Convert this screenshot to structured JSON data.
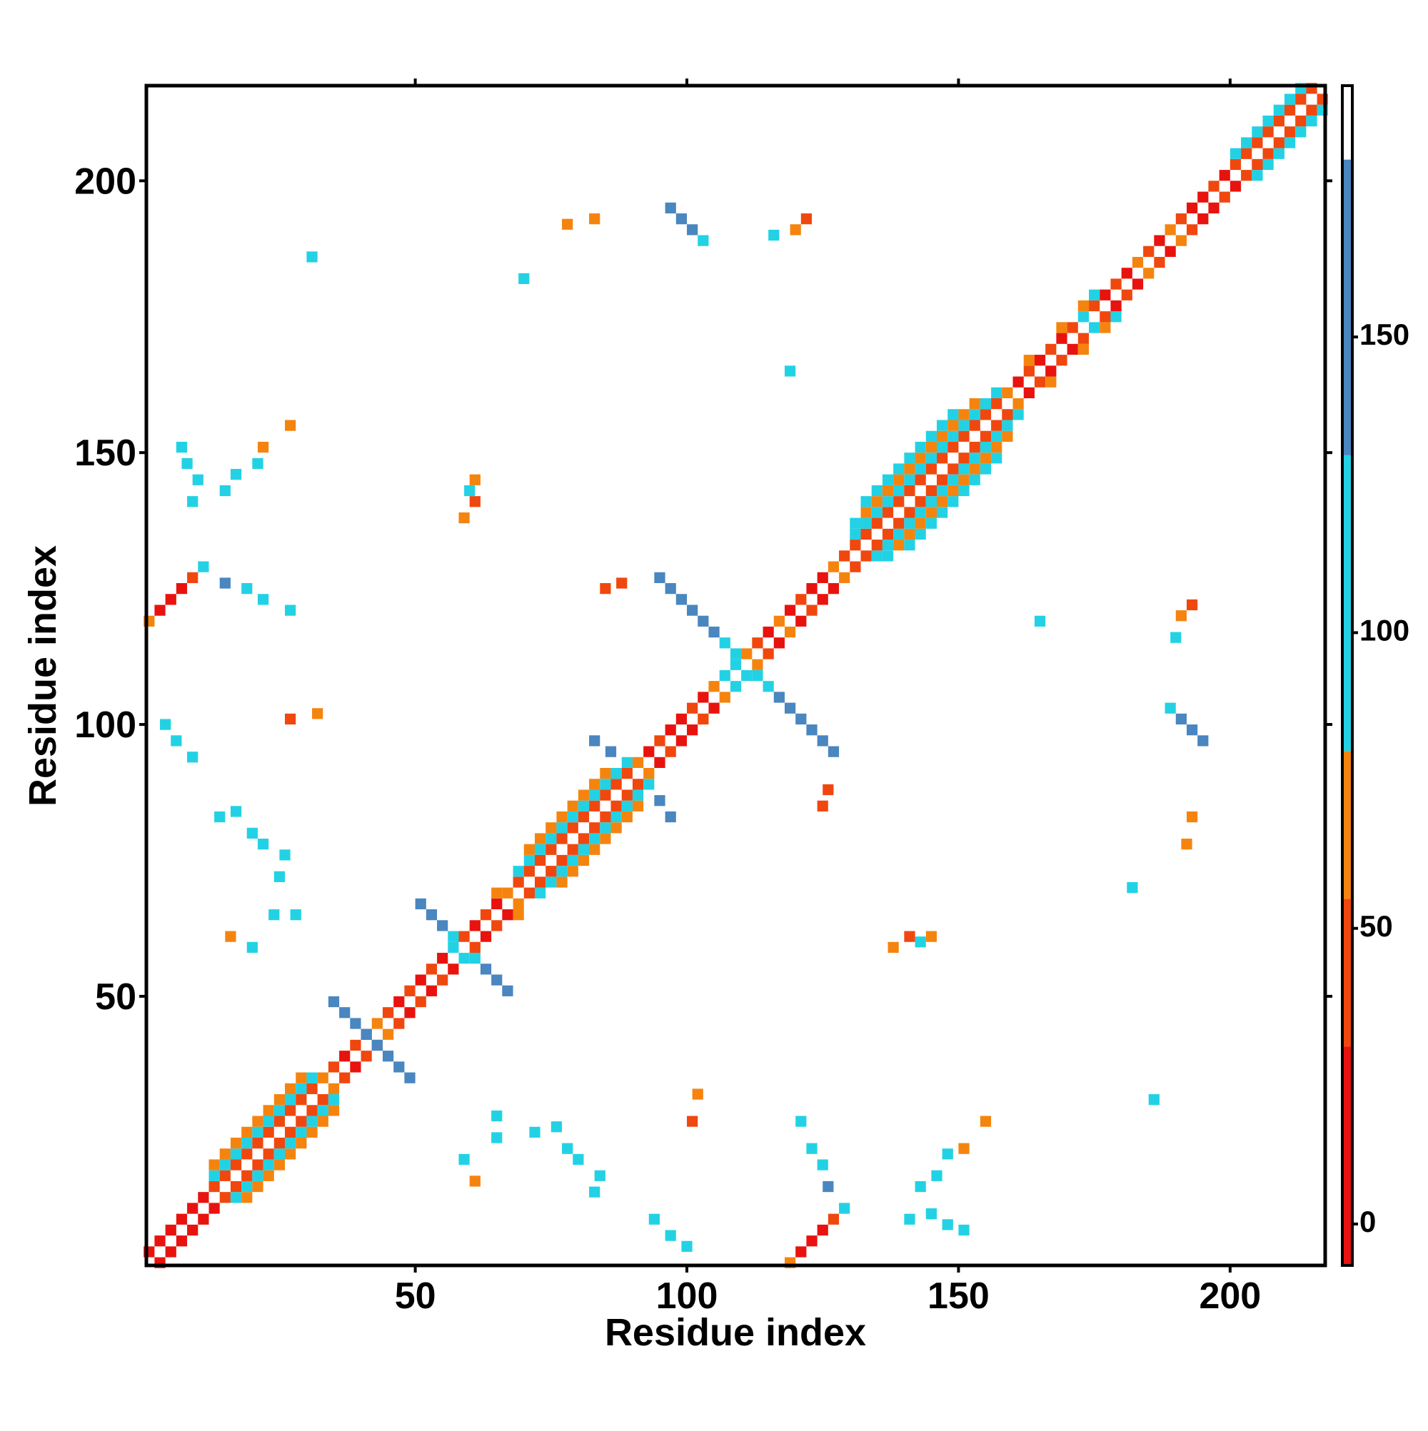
{
  "chart_data": {
    "type": "heatmap",
    "xlabel": "Residue index",
    "ylabel": "Residue index",
    "xlim": [
      0.5,
      217.5
    ],
    "ylim": [
      0.5,
      217.5
    ],
    "xticks": [
      50,
      100,
      150,
      200
    ],
    "yticks": [
      50,
      100,
      150,
      200
    ],
    "cell_size": 2,
    "symmetric": true,
    "colorbar": {
      "ylim": [
        -7,
        192.5
      ],
      "yticks": [
        0,
        50,
        100,
        150
      ],
      "breaks": [
        -7,
        30,
        55,
        80,
        130,
        180,
        192.5
      ],
      "colors": [
        "#e8130e",
        "#f0470f",
        "#f5840f",
        "#22d2e4",
        "#4a86bf",
        "#ffffff"
      ]
    },
    "cells": [
      [
        3,
        1,
        10
      ],
      [
        5,
        3,
        10
      ],
      [
        7,
        5,
        10
      ],
      [
        9,
        7,
        10
      ],
      [
        11,
        9,
        10
      ],
      [
        13,
        11,
        10
      ],
      [
        15,
        13,
        40
      ],
      [
        17,
        13,
        100
      ],
      [
        19,
        13,
        65
      ],
      [
        17,
        15,
        40
      ],
      [
        19,
        15,
        100
      ],
      [
        21,
        15,
        65
      ],
      [
        19,
        17,
        40
      ],
      [
        21,
        17,
        100
      ],
      [
        23,
        17,
        65
      ],
      [
        21,
        19,
        40
      ],
      [
        23,
        19,
        100
      ],
      [
        25,
        19,
        65
      ],
      [
        23,
        21,
        40
      ],
      [
        25,
        21,
        100
      ],
      [
        27,
        21,
        65
      ],
      [
        25,
        23,
        40
      ],
      [
        27,
        23,
        100
      ],
      [
        29,
        23,
        65
      ],
      [
        27,
        25,
        40
      ],
      [
        29,
        25,
        100
      ],
      [
        31,
        25,
        65
      ],
      [
        29,
        27,
        40
      ],
      [
        31,
        27,
        100
      ],
      [
        33,
        27,
        65
      ],
      [
        31,
        29,
        40
      ],
      [
        33,
        29,
        100
      ],
      [
        35,
        29,
        65
      ],
      [
        33,
        31,
        40
      ],
      [
        35,
        31,
        100
      ],
      [
        35,
        33,
        65
      ],
      [
        37,
        35,
        40
      ],
      [
        39,
        37,
        10
      ],
      [
        41,
        39,
        40
      ],
      [
        43,
        41,
        10
      ],
      [
        45,
        43,
        65
      ],
      [
        47,
        45,
        40
      ],
      [
        49,
        47,
        10
      ],
      [
        51,
        49,
        40
      ],
      [
        53,
        51,
        10
      ],
      [
        55,
        53,
        40
      ],
      [
        57,
        55,
        10
      ],
      [
        59,
        57,
        100
      ],
      [
        61,
        59,
        40
      ],
      [
        63,
        61,
        10
      ],
      [
        65,
        63,
        40
      ],
      [
        67,
        65,
        10
      ],
      [
        69,
        65,
        65
      ],
      [
        69,
        67,
        65
      ],
      [
        71,
        69,
        40
      ],
      [
        73,
        69,
        100
      ],
      [
        73,
        71,
        40
      ],
      [
        75,
        71,
        100
      ],
      [
        77,
        71,
        65
      ],
      [
        75,
        73,
        40
      ],
      [
        77,
        73,
        100
      ],
      [
        79,
        73,
        65
      ],
      [
        77,
        75,
        40
      ],
      [
        79,
        75,
        100
      ],
      [
        81,
        75,
        65
      ],
      [
        79,
        77,
        40
      ],
      [
        81,
        77,
        100
      ],
      [
        83,
        77,
        65
      ],
      [
        81,
        79,
        40
      ],
      [
        83,
        79,
        100
      ],
      [
        85,
        79,
        65
      ],
      [
        83,
        81,
        40
      ],
      [
        85,
        81,
        100
      ],
      [
        87,
        81,
        65
      ],
      [
        85,
        83,
        40
      ],
      [
        87,
        83,
        100
      ],
      [
        89,
        83,
        65
      ],
      [
        87,
        85,
        40
      ],
      [
        89,
        85,
        100
      ],
      [
        91,
        85,
        65
      ],
      [
        89,
        87,
        40
      ],
      [
        91,
        87,
        100
      ],
      [
        91,
        89,
        40
      ],
      [
        93,
        89,
        100
      ],
      [
        93,
        91,
        65
      ],
      [
        95,
        93,
        10
      ],
      [
        97,
        95,
        40
      ],
      [
        99,
        97,
        10
      ],
      [
        101,
        99,
        10
      ],
      [
        103,
        101,
        40
      ],
      [
        105,
        103,
        10
      ],
      [
        107,
        105,
        65
      ],
      [
        109,
        107,
        100
      ],
      [
        111,
        109,
        100
      ],
      [
        113,
        111,
        65
      ],
      [
        115,
        113,
        40
      ],
      [
        117,
        115,
        10
      ],
      [
        119,
        117,
        65
      ],
      [
        121,
        119,
        10
      ],
      [
        123,
        121,
        40
      ],
      [
        125,
        123,
        10
      ],
      [
        127,
        125,
        10
      ],
      [
        129,
        127,
        65
      ],
      [
        131,
        129,
        40
      ],
      [
        133,
        131,
        40
      ],
      [
        135,
        131,
        100
      ],
      [
        137,
        131,
        100
      ],
      [
        135,
        133,
        40
      ],
      [
        137,
        133,
        100
      ],
      [
        139,
        133,
        65
      ],
      [
        141,
        133,
        100
      ],
      [
        137,
        135,
        40
      ],
      [
        139,
        135,
        100
      ],
      [
        141,
        135,
        65
      ],
      [
        143,
        135,
        100
      ],
      [
        139,
        137,
        40
      ],
      [
        141,
        137,
        100
      ],
      [
        143,
        137,
        65
      ],
      [
        145,
        137,
        100
      ],
      [
        141,
        139,
        40
      ],
      [
        143,
        139,
        100
      ],
      [
        145,
        139,
        65
      ],
      [
        147,
        139,
        100
      ],
      [
        143,
        141,
        40
      ],
      [
        145,
        141,
        100
      ],
      [
        147,
        141,
        65
      ],
      [
        149,
        141,
        100
      ],
      [
        145,
        143,
        40
      ],
      [
        147,
        143,
        100
      ],
      [
        149,
        143,
        65
      ],
      [
        151,
        143,
        100
      ],
      [
        147,
        145,
        40
      ],
      [
        149,
        145,
        100
      ],
      [
        151,
        145,
        65
      ],
      [
        153,
        145,
        100
      ],
      [
        149,
        147,
        40
      ],
      [
        151,
        147,
        100
      ],
      [
        153,
        147,
        65
      ],
      [
        155,
        147,
        100
      ],
      [
        151,
        149,
        40
      ],
      [
        153,
        149,
        100
      ],
      [
        155,
        149,
        65
      ],
      [
        157,
        149,
        100
      ],
      [
        153,
        151,
        40
      ],
      [
        155,
        151,
        100
      ],
      [
        157,
        151,
        65
      ],
      [
        155,
        153,
        40
      ],
      [
        157,
        153,
        100
      ],
      [
        159,
        153,
        65
      ],
      [
        157,
        155,
        40
      ],
      [
        159,
        155,
        100
      ],
      [
        159,
        157,
        40
      ],
      [
        161,
        157,
        100
      ],
      [
        161,
        159,
        65
      ],
      [
        163,
        161,
        10
      ],
      [
        165,
        163,
        40
      ],
      [
        167,
        163,
        65
      ],
      [
        167,
        165,
        10
      ],
      [
        169,
        167,
        40
      ],
      [
        171,
        169,
        10
      ],
      [
        173,
        169,
        65
      ],
      [
        173,
        171,
        40
      ],
      [
        175,
        173,
        100
      ],
      [
        177,
        173,
        65
      ],
      [
        177,
        175,
        40
      ],
      [
        179,
        175,
        100
      ],
      [
        179,
        177,
        10
      ],
      [
        181,
        179,
        40
      ],
      [
        183,
        181,
        10
      ],
      [
        185,
        183,
        65
      ],
      [
        187,
        185,
        40
      ],
      [
        189,
        187,
        10
      ],
      [
        191,
        189,
        65
      ],
      [
        193,
        191,
        40
      ],
      [
        195,
        193,
        10
      ],
      [
        197,
        195,
        10
      ],
      [
        199,
        197,
        40
      ],
      [
        201,
        199,
        10
      ],
      [
        203,
        201,
        40
      ],
      [
        205,
        201,
        100
      ],
      [
        205,
        203,
        40
      ],
      [
        207,
        203,
        100
      ],
      [
        207,
        205,
        40
      ],
      [
        209,
        205,
        100
      ],
      [
        209,
        207,
        40
      ],
      [
        211,
        207,
        100
      ],
      [
        211,
        209,
        40
      ],
      [
        213,
        209,
        100
      ],
      [
        213,
        211,
        40
      ],
      [
        215,
        211,
        100
      ],
      [
        215,
        213,
        40
      ],
      [
        217,
        213,
        100
      ],
      [
        217,
        215,
        40
      ],
      [
        43,
        41,
        150
      ],
      [
        45,
        39,
        150
      ],
      [
        47,
        37,
        150
      ],
      [
        49,
        35,
        150
      ],
      [
        61,
        57,
        100
      ],
      [
        63,
        55,
        150
      ],
      [
        65,
        53,
        150
      ],
      [
        67,
        51,
        150
      ],
      [
        113,
        109,
        100
      ],
      [
        115,
        107,
        100
      ],
      [
        117,
        105,
        150
      ],
      [
        119,
        103,
        150
      ],
      [
        121,
        101,
        150
      ],
      [
        123,
        99,
        150
      ],
      [
        125,
        97,
        150
      ],
      [
        127,
        95,
        150
      ],
      [
        189,
        103,
        100
      ],
      [
        191,
        101,
        150
      ],
      [
        193,
        99,
        150
      ],
      [
        195,
        97,
        150
      ],
      [
        119,
        1,
        65
      ],
      [
        121,
        3,
        10
      ],
      [
        123,
        5,
        10
      ],
      [
        125,
        7,
        10
      ],
      [
        127,
        9,
        40
      ],
      [
        129,
        11,
        100
      ],
      [
        165,
        119,
        100
      ],
      [
        186,
        31,
        100
      ],
      [
        182,
        70,
        100
      ],
      [
        193,
        83,
        65
      ],
      [
        192,
        78,
        65
      ],
      [
        193,
        122,
        40
      ],
      [
        191,
        120,
        65
      ],
      [
        190,
        116,
        100
      ],
      [
        138,
        59,
        65
      ],
      [
        141,
        61,
        40
      ],
      [
        143,
        60,
        100
      ],
      [
        145,
        61,
        65
      ],
      [
        141,
        9,
        100
      ],
      [
        145,
        10,
        100
      ],
      [
        148,
        8,
        100
      ],
      [
        151,
        7,
        100
      ],
      [
        146,
        17,
        100
      ],
      [
        148,
        21,
        100
      ],
      [
        151,
        22,
        65
      ],
      [
        155,
        27,
        65
      ],
      [
        143,
        15,
        100
      ],
      [
        102,
        32,
        65
      ],
      [
        101,
        27,
        40
      ],
      [
        121,
        27,
        100
      ],
      [
        123,
        22,
        100
      ],
      [
        125,
        19,
        100
      ],
      [
        126,
        15,
        150
      ],
      [
        65,
        28,
        100
      ],
      [
        65,
        24,
        100
      ],
      [
        72,
        25,
        100
      ],
      [
        76,
        26,
        100
      ],
      [
        78,
        22,
        100
      ],
      [
        80,
        20,
        100
      ],
      [
        84,
        17,
        100
      ],
      [
        83,
        14,
        100
      ],
      [
        94,
        9,
        100
      ],
      [
        97,
        6,
        100
      ],
      [
        100,
        4,
        100
      ],
      [
        125,
        85,
        40
      ],
      [
        126,
        88,
        40
      ],
      [
        95,
        86,
        150
      ],
      [
        97,
        83,
        150
      ],
      [
        59,
        20,
        100
      ],
      [
        61,
        16,
        65
      ]
    ]
  }
}
